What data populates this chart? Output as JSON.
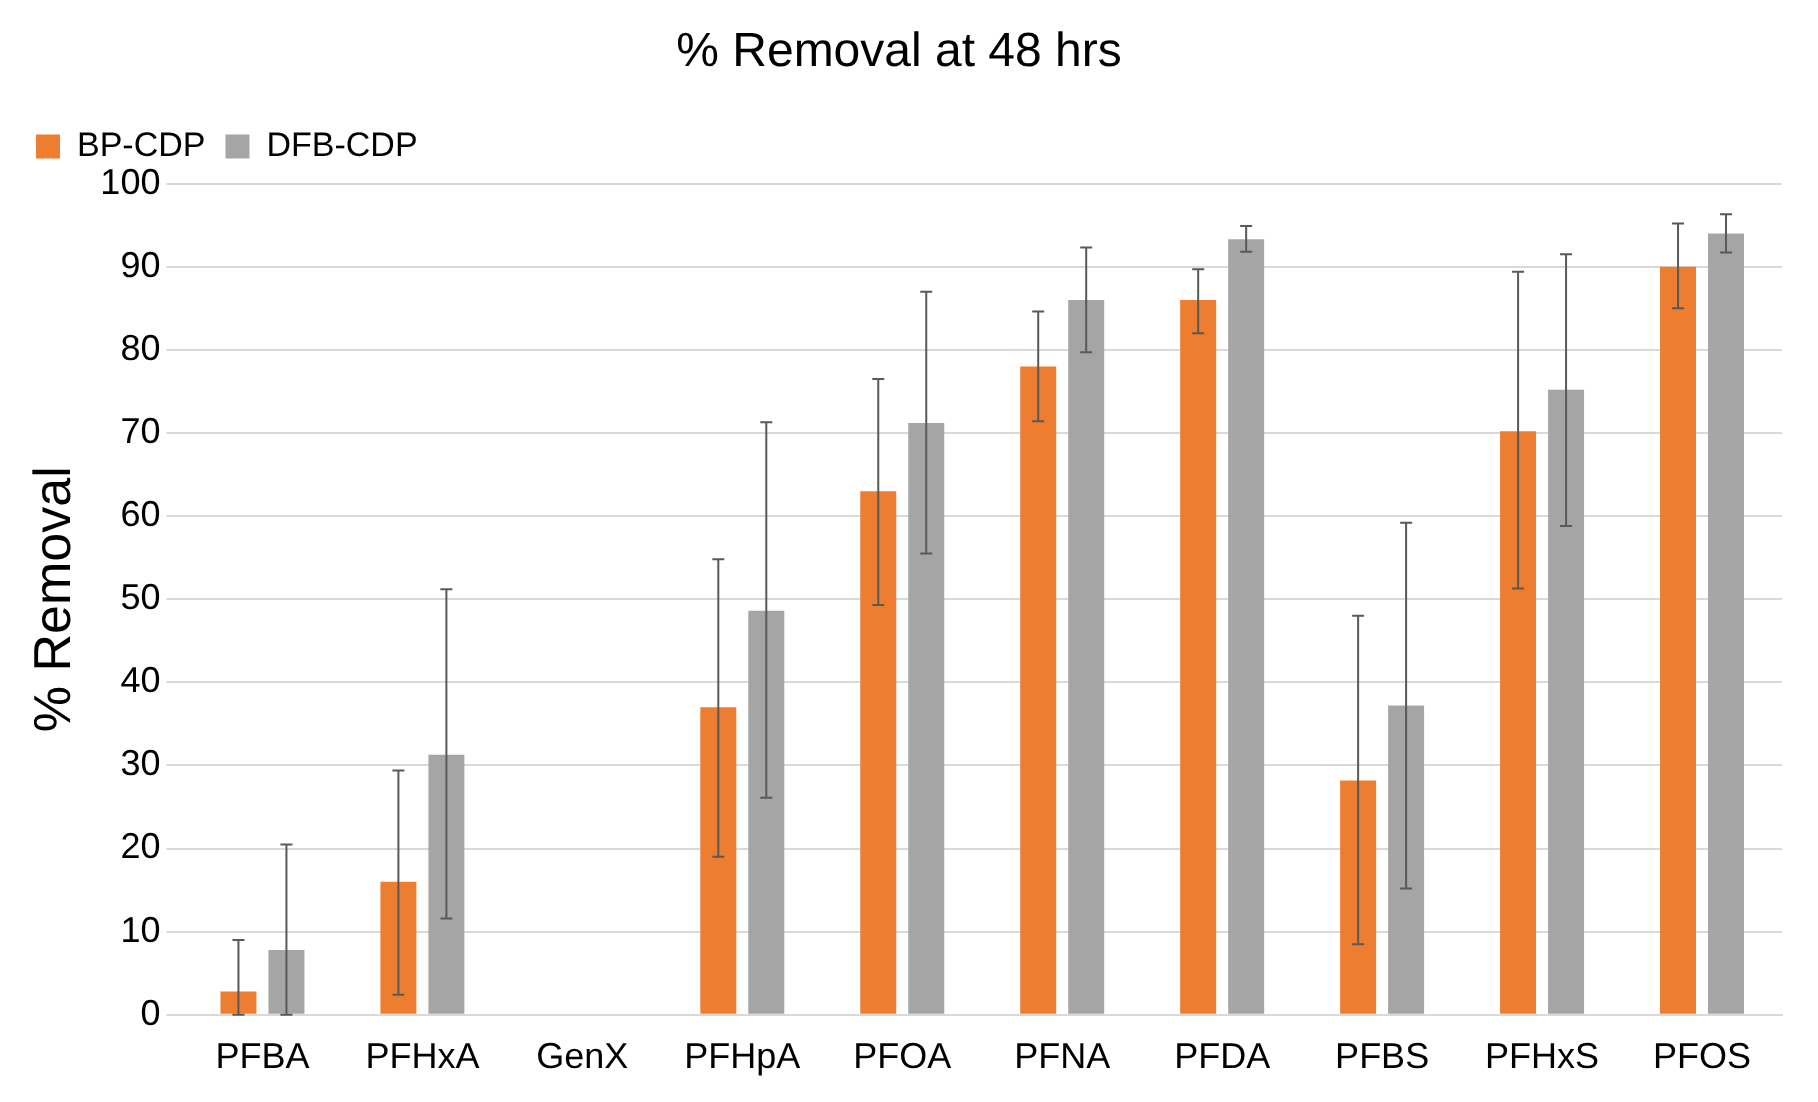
{
  "chart_data": {
    "type": "bar",
    "title": "% Removal at 48 hrs",
    "ylabel": "% Removal",
    "categories": [
      "PFBA",
      "PFHxA",
      "GenX",
      "PFHpA",
      "PFOA",
      "PFNA",
      "PFDA",
      "PFBS",
      "PFHxS",
      "PFOS"
    ],
    "series": [
      {
        "name": "BP-CDP",
        "color": "#ed7d31",
        "values": [
          2.8,
          16,
          null,
          37,
          63,
          78,
          86,
          28.2,
          70.2,
          90
        ],
        "errors": [
          [
            0,
            9
          ],
          [
            2.4,
            29.4
          ],
          null,
          [
            19,
            54.8
          ],
          [
            49.3,
            76.5
          ],
          [
            71.4,
            84.6
          ],
          [
            82,
            89.7
          ],
          [
            8.5,
            48
          ],
          [
            51.3,
            89.4
          ],
          [
            85,
            95.2
          ]
        ]
      },
      {
        "name": "DFB-CDP",
        "color": "#a5a5a5",
        "values": [
          7.8,
          31.3,
          null,
          48.6,
          71.2,
          86,
          93.3,
          37.2,
          75.2,
          94
        ],
        "errors": [
          [
            0,
            20.5
          ],
          [
            11.6,
            51.2
          ],
          null,
          [
            26.1,
            71.3
          ],
          [
            55.5,
            87
          ],
          [
            79.7,
            92.3
          ],
          [
            91.8,
            94.9
          ],
          [
            15.2,
            59.2
          ],
          [
            58.8,
            91.5
          ],
          [
            91.7,
            96.3
          ]
        ]
      }
    ],
    "ylim": [
      0,
      100
    ],
    "yticks": [
      0,
      10,
      20,
      30,
      40,
      50,
      60,
      70,
      80,
      90,
      100
    ],
    "grid": "y",
    "legend": "top left"
  }
}
